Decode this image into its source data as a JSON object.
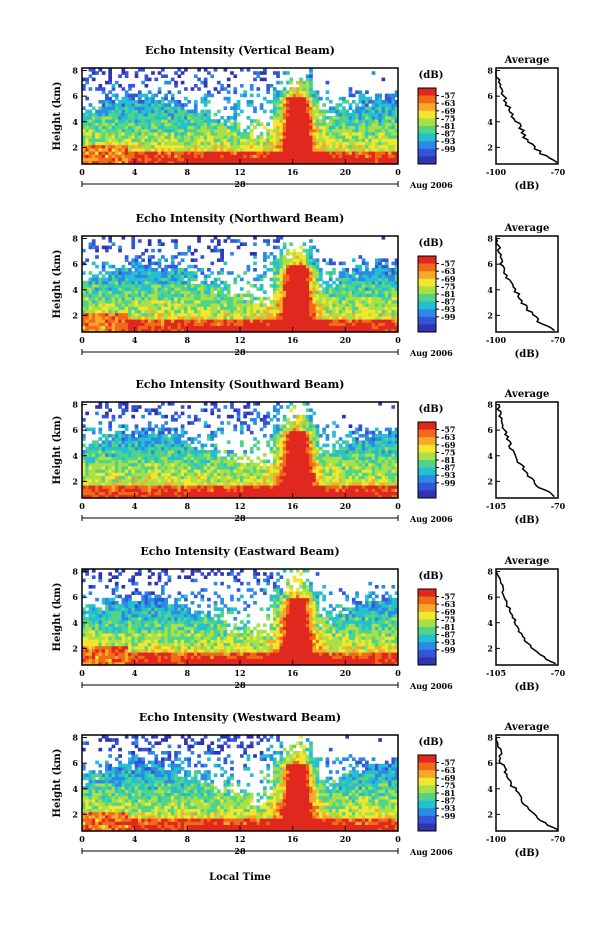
{
  "figure": {
    "xlabel": "Local Time",
    "date_label": "Aug 2006",
    "day_label": "28"
  },
  "colorscale": {
    "unit_label": "(dB)",
    "levels": [
      -57,
      -63,
      -69,
      -75,
      -81,
      -87,
      -93,
      -99
    ],
    "level_labels": [
      "-57",
      "-63",
      "-69",
      "-75",
      "-81",
      "-87",
      "-93",
      "-99"
    ],
    "colors": [
      "#e0281e",
      "#f06a18",
      "#f7a82a",
      "#f3e62e",
      "#a9e048",
      "#4fd48a",
      "#25bfd2",
      "#2a8ae6",
      "#3555d8",
      "#3034b0"
    ]
  },
  "chart_data": [
    {
      "type": "heatmap",
      "title": "Echo Intensity (Vertical Beam)",
      "ylabel": "Height (km)",
      "xticks": [
        "0",
        "4",
        "8",
        "12",
        "16",
        "20",
        "0"
      ],
      "yticks": [
        "2",
        "4",
        "6",
        "8"
      ],
      "xlim": [
        0,
        24
      ],
      "ylim": [
        0.7,
        8.2
      ],
      "avg": {
        "title": "Average",
        "xlabel": "(dB)",
        "xticks": [
          "-100",
          "-70"
        ],
        "yticks": [
          "2",
          "4",
          "6",
          "8"
        ],
        "xlim": [
          -100,
          -70
        ],
        "height_km": [
          0.8,
          1.5,
          2.5,
          3.5,
          4.5,
          5.5,
          6.5,
          7.5,
          8.0
        ],
        "db": [
          -70,
          -78,
          -85,
          -88,
          -92,
          -95,
          -97,
          -99,
          -100
        ]
      }
    },
    {
      "type": "heatmap",
      "title": "Echo Intensity (Northward Beam)",
      "ylabel": "Height (km)",
      "xticks": [
        "0",
        "4",
        "8",
        "12",
        "16",
        "20",
        "0"
      ],
      "yticks": [
        "2",
        "4",
        "6",
        "8"
      ],
      "xlim": [
        0,
        24
      ],
      "ylim": [
        0.7,
        8.2
      ],
      "avg": {
        "title": "Average",
        "xlabel": "(dB)",
        "xticks": [
          "-100",
          "-70"
        ],
        "yticks": [
          "2",
          "4",
          "6",
          "8"
        ],
        "xlim": [
          -100,
          -70
        ],
        "height_km": [
          0.8,
          1.5,
          2.5,
          3.5,
          4.5,
          5.5,
          6.5,
          7.5,
          8.0
        ],
        "db": [
          -71,
          -79,
          -85,
          -89,
          -93,
          -96,
          -98,
          -99,
          -100
        ]
      }
    },
    {
      "type": "heatmap",
      "title": "Echo Intensity (Southward Beam)",
      "ylabel": "Height (km)",
      "xticks": [
        "0",
        "4",
        "8",
        "12",
        "16",
        "20",
        "0"
      ],
      "yticks": [
        "2",
        "4",
        "6",
        "8"
      ],
      "xlim": [
        0,
        24
      ],
      "ylim": [
        0.7,
        8.2
      ],
      "avg": {
        "title": "Average",
        "xlabel": "(dB)",
        "xticks": [
          "-105",
          "-70"
        ],
        "yticks": [
          "2",
          "4",
          "6",
          "8"
        ],
        "xlim": [
          -105,
          -70
        ],
        "height_km": [
          0.8,
          1.5,
          2.5,
          3.5,
          4.5,
          5.5,
          6.5,
          7.5,
          8.0
        ],
        "db": [
          -71,
          -80,
          -87,
          -92,
          -96,
          -99,
          -101,
          -103,
          -104
        ]
      }
    },
    {
      "type": "heatmap",
      "title": "Echo Intensity (Eastward Beam)",
      "ylabel": "Height (km)",
      "xticks": [
        "0",
        "4",
        "8",
        "12",
        "16",
        "20",
        "0"
      ],
      "yticks": [
        "2",
        "4",
        "6",
        "8"
      ],
      "xlim": [
        0,
        24
      ],
      "ylim": [
        0.7,
        8.2
      ],
      "avg": {
        "title": "Average",
        "xlabel": "(dB)",
        "xticks": [
          "-105",
          "-70"
        ],
        "yticks": [
          "2",
          "4",
          "6",
          "8"
        ],
        "xlim": [
          -105,
          -70
        ],
        "height_km": [
          0.8,
          1.5,
          2.5,
          3.5,
          4.5,
          5.5,
          6.5,
          7.5,
          8.0
        ],
        "db": [
          -72,
          -80,
          -88,
          -92,
          -96,
          -99,
          -101,
          -103,
          -104
        ]
      }
    },
    {
      "type": "heatmap",
      "title": "Echo Intensity (Westward Beam)",
      "ylabel": "Height (km)",
      "xticks": [
        "0",
        "4",
        "8",
        "12",
        "16",
        "20",
        "0"
      ],
      "yticks": [
        "2",
        "4",
        "6",
        "8"
      ],
      "xlim": [
        0,
        24
      ],
      "ylim": [
        0.7,
        8.2
      ],
      "avg": {
        "title": "Average",
        "xlabel": "(dB)",
        "xticks": [
          "-100",
          "-70"
        ],
        "yticks": [
          "2",
          "4",
          "6",
          "8"
        ],
        "xlim": [
          -100,
          -70
        ],
        "height_km": [
          0.8,
          1.5,
          2.5,
          3.5,
          4.5,
          5.5,
          6.5,
          7.5,
          8.0
        ],
        "db": [
          -70,
          -78,
          -85,
          -89,
          -93,
          -96,
          -98,
          -99,
          -100
        ]
      }
    }
  ]
}
